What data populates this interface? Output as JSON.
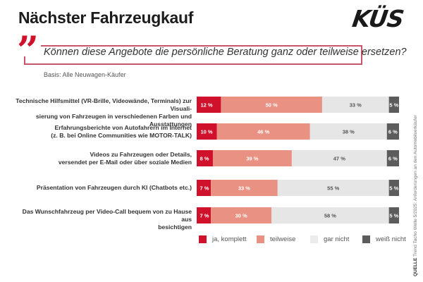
{
  "header": {
    "title": "Nächster Fahrzeugkauf",
    "logo": "KÜS",
    "question": "Können diese Angebote die persönliche Beratung ganz oder teilweise ersetzen?",
    "basis": "Basis: Alle Neuwagen-Käufer"
  },
  "source": {
    "label": "QUELLE",
    "text": "Trend Tacho Welle 5/2025: Anforderungen an den Automobilverkäufer"
  },
  "colors": {
    "ja_komplett": "#d0112b",
    "teilweise": "#e99283",
    "gar_nicht": "#e6e6e6",
    "weiss_nicht": "#5c5c5c",
    "accent": "#d0112b"
  },
  "chart_data": {
    "type": "bar",
    "orientation": "horizontal-stacked-100",
    "title": "Nächster Fahrzeugkauf",
    "subtitle": "Können diese Angebote die persönliche Beratung ganz oder teilweise ersetzen?",
    "xlabel": "",
    "ylabel": "",
    "xlim": [
      0,
      100
    ],
    "grid": false,
    "legend_position": "bottom",
    "categories": [
      [
        "Technische Hilfsmittel (VR-Brille, Videowände, Terminals) zur Visuali-",
        "sierung von Fahrzeugen in verschiedenen Farben und Ausstattungen"
      ],
      [
        "Erfahrungsberichte von Autofahrern im Internet",
        "(z. B. bei Online Communities wie MOTOR-TALK)"
      ],
      [
        "Videos zu Fahrzeugen oder Details,",
        "versendet per E-Mail oder über soziale Medien"
      ],
      [
        "Präsentation von Fahrzeugen durch KI (Chatbots etc.)"
      ],
      [
        "Das Wunschfahrzeug per Video-Call bequem von zu Hause aus",
        "besichtigen"
      ]
    ],
    "series": [
      {
        "name": "ja, komplett",
        "key": "ja_komplett",
        "values": [
          12,
          10,
          8,
          7,
          7
        ]
      },
      {
        "name": "teilweise",
        "key": "teilweise",
        "values": [
          50,
          46,
          39,
          33,
          30
        ]
      },
      {
        "name": "gar nicht",
        "key": "gar_nicht",
        "values": [
          33,
          38,
          47,
          55,
          58
        ]
      },
      {
        "name": "weiß nicht",
        "key": "weiss_nicht",
        "values": [
          5,
          6,
          6,
          5,
          5
        ]
      }
    ],
    "value_suffix": " %"
  }
}
